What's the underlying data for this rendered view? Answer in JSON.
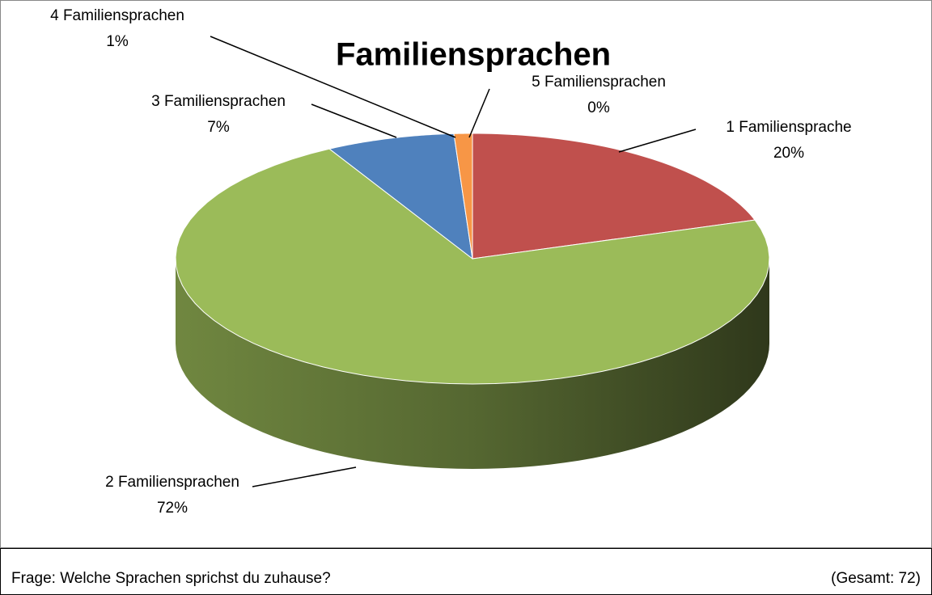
{
  "chart_data": {
    "type": "pie3d",
    "title": "Familiensprachen",
    "categories": [
      "1 Familiensprache",
      "2 Familiensprachen",
      "3 Familiensprachen",
      "4 Familiensprachen",
      "5 Familiensprachen"
    ],
    "values": [
      20,
      72,
      7,
      1,
      0
    ],
    "value_labels": [
      "20%",
      "72%",
      "7%",
      "1%",
      "0%"
    ],
    "colors": [
      "#c0504d",
      "#9bbb59",
      "#4f81bd",
      "#f79646",
      "#8064a2"
    ],
    "note": "Frage: Welche Sprachen sprichst du zuhause?",
    "total_note": "(Gesamt: 72)"
  }
}
